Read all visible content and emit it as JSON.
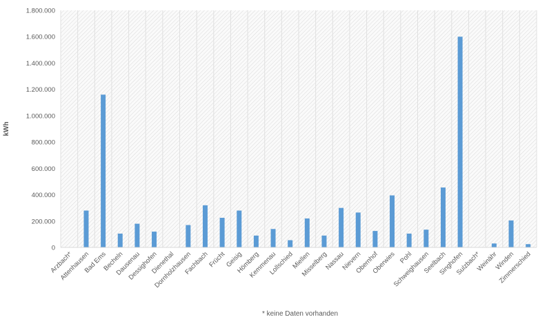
{
  "chart_data": {
    "type": "bar",
    "title": "",
    "xlabel": "",
    "ylabel": "kWh",
    "ylim": [
      0,
      1800000
    ],
    "yticks": [
      0,
      200000,
      400000,
      600000,
      800000,
      1000000,
      1200000,
      1400000,
      1600000,
      1800000
    ],
    "ytick_labels": [
      "0",
      "200.000",
      "400.000",
      "600.000",
      "800.000",
      "1.000.000",
      "1.200.000",
      "1.400.000",
      "1.600.000",
      "1.800.000"
    ],
    "categories": [
      "Arzbach*",
      "Attenhausen",
      "Bad Ems",
      "Becheln",
      "Dausenau",
      "Dessighofen",
      "Dienethal",
      "Dornholzhausen",
      "Fachbach",
      "Frücht",
      "Geisig",
      "Hömberg",
      "Kemmenau",
      "Lollschied",
      "Miellen",
      "Misselberg",
      "Nassau",
      "Nievern",
      "Obernhof",
      "Oberwies",
      "Pohl",
      "Schweighausen",
      "Seelbach",
      "Singhofen",
      "Sulzbach*",
      "Weinähr",
      "Winden",
      "Zimmerschied"
    ],
    "values": [
      0,
      280000,
      1160000,
      105000,
      180000,
      120000,
      0,
      170000,
      320000,
      225000,
      280000,
      90000,
      140000,
      55000,
      220000,
      90000,
      300000,
      265000,
      125000,
      395000,
      105000,
      135000,
      455000,
      1600000,
      0,
      30000,
      205000,
      25000
    ],
    "bar_color": "#5B9BD5",
    "footnote": "* keine Daten vorhanden",
    "grid": true
  }
}
